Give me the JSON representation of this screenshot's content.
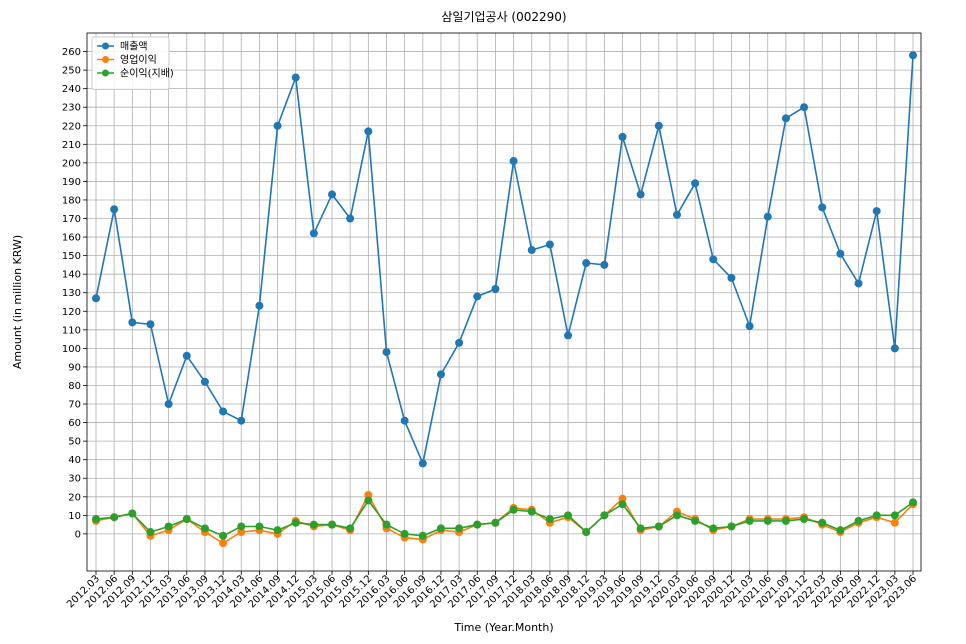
{
  "chart_data": {
    "type": "line",
    "title": "삼일기업공사 (002290)",
    "xlabel": "Time (Year.Month)",
    "ylabel": "Amount (in million KRW)",
    "ylim": [
      -20,
      270
    ],
    "yticks": [
      0,
      10,
      20,
      30,
      40,
      50,
      60,
      70,
      80,
      90,
      100,
      110,
      120,
      130,
      140,
      150,
      160,
      170,
      180,
      190,
      200,
      210,
      220,
      230,
      240,
      250,
      260
    ],
    "grid": true,
    "legend_position": "top-left",
    "categories": [
      "2012.03",
      "2012.06",
      "2012.09",
      "2012.12",
      "2013.03",
      "2013.06",
      "2013.09",
      "2013.12",
      "2014.03",
      "2014.06",
      "2014.09",
      "2014.12",
      "2015.03",
      "2015.06",
      "2015.09",
      "2015.12",
      "2016.03",
      "2016.06",
      "2016.09",
      "2016.12",
      "2017.03",
      "2017.06",
      "2017.09",
      "2017.12",
      "2018.03",
      "2018.06",
      "2018.09",
      "2018.12",
      "2019.03",
      "2019.06",
      "2019.09",
      "2019.12",
      "2020.03",
      "2020.06",
      "2020.09",
      "2020.12",
      "2021.03",
      "2021.06",
      "2021.09",
      "2021.12",
      "2022.03",
      "2022.06",
      "2022.09",
      "2022.12",
      "2023.03",
      "2023.06"
    ],
    "series": [
      {
        "name": "매출액",
        "color": "#1f77b4",
        "values": [
          127,
          175,
          114,
          113,
          70,
          96,
          82,
          66,
          61,
          123,
          220,
          246,
          162,
          183,
          170,
          217,
          98,
          61,
          38,
          86,
          103,
          128,
          132,
          201,
          153,
          156,
          107,
          146,
          145,
          214,
          183,
          220,
          172,
          189,
          148,
          138,
          112,
          171,
          224,
          230,
          176,
          151,
          135,
          174,
          100,
          258
        ]
      },
      {
        "name": "영업이익",
        "color": "#ff7f0e",
        "values": [
          7,
          9,
          11,
          -1,
          2,
          8,
          1,
          -5,
          1,
          2,
          0,
          7,
          4,
          5,
          2,
          21,
          3,
          -2,
          -3,
          2,
          1,
          5,
          6,
          14,
          13,
          6,
          9,
          1,
          10,
          19,
          2,
          4,
          12,
          8,
          2,
          4,
          8,
          8,
          8,
          9,
          5,
          1,
          6,
          9,
          6,
          16
        ]
      },
      {
        "name": "순이익(지배)",
        "color": "#2ca02c",
        "values": [
          8,
          9,
          11,
          1,
          4,
          8,
          3,
          -1,
          4,
          4,
          2,
          6,
          5,
          5,
          3,
          18,
          5,
          0,
          -1,
          3,
          3,
          5,
          6,
          13,
          12,
          8,
          10,
          1,
          10,
          16,
          3,
          4,
          10,
          7,
          3,
          4,
          7,
          7,
          7,
          8,
          6,
          2,
          7,
          10,
          10,
          17
        ]
      }
    ]
  }
}
